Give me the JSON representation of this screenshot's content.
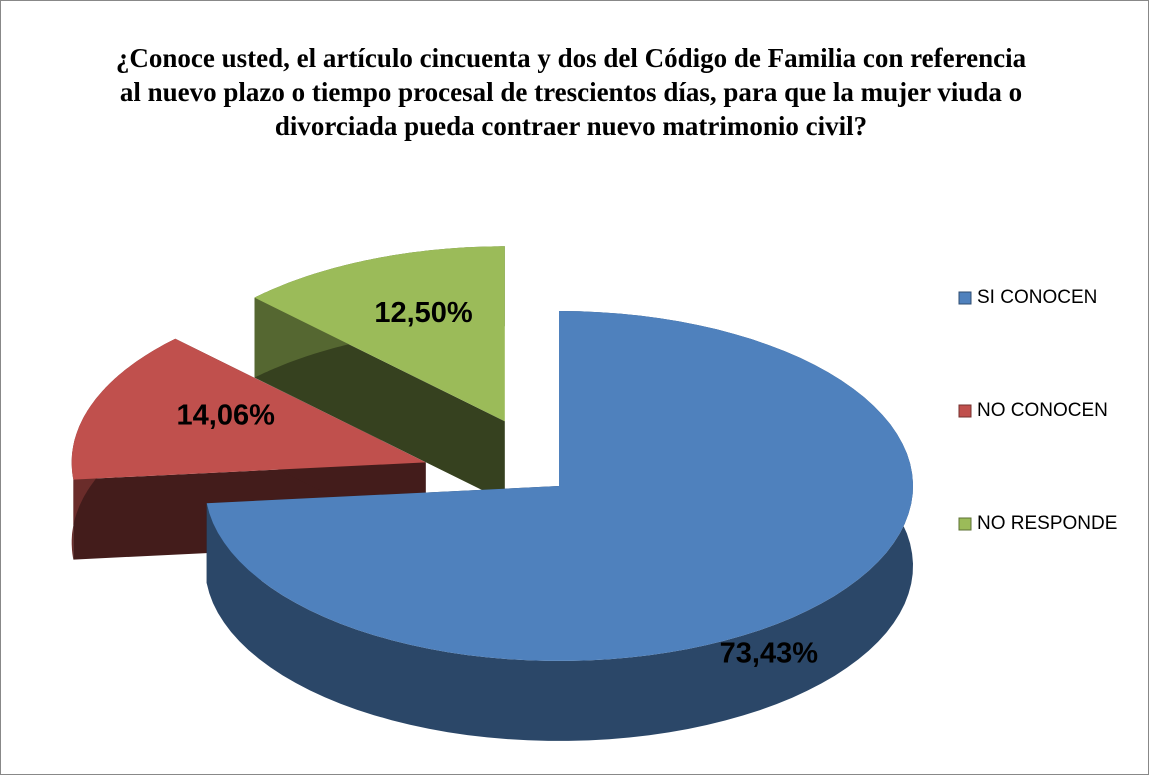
{
  "chart_data": {
    "type": "pie",
    "title": "¿Conoce usted, el artículo cincuenta y dos del Código de Familia con referencia al nuevo plazo o tiempo procesal de trescientos días, para que la mujer viuda o divorciada pueda contraer nuevo matrimonio civil?",
    "categories": [
      "SI CONOCEN",
      "NO CONOCEN",
      "NO RESPONDE"
    ],
    "values": [
      73.43,
      14.06,
      12.5
    ],
    "value_labels": [
      "73,43%",
      "14,06%",
      "12,50%"
    ],
    "colors": [
      "#4f81bd",
      "#c0504d",
      "#9bbb59"
    ],
    "legend": "right"
  }
}
